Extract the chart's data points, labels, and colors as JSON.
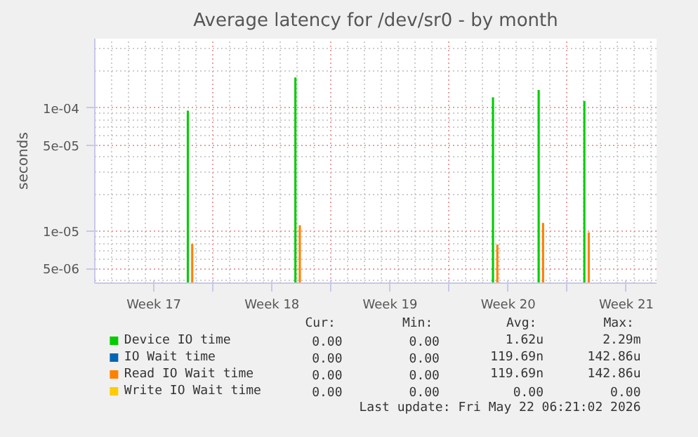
{
  "chart_data": {
    "type": "bar",
    "title": "Average latency for /dev/sr0 - by month",
    "ylabel": "seconds",
    "x": [
      "2026-04-25T17:00",
      "2026-05-02T02:00",
      "2026-05-13T19:00",
      "2026-05-16T12:00",
      "2026-05-19T05:00"
    ],
    "series": [
      {
        "name": "Device IO time",
        "color": "#00cc00",
        "values": [
          9.5e-05,
          0.000177,
          0.000122,
          0.00014,
          0.000114
        ]
      },
      {
        "name": "IO Wait time",
        "color": "#0066b3",
        "values": [
          null,
          null,
          null,
          null,
          null
        ]
      },
      {
        "name": "Read IO Wait time",
        "color": "#ff8000",
        "values": [
          7.9e-06,
          1.12e-05,
          7.8e-06,
          1.17e-05,
          9.8e-06
        ]
      },
      {
        "name": "Write IO Wait time",
        "color": "#ffcc00",
        "values": [
          null,
          null,
          null,
          null,
          null
        ]
      }
    ],
    "log": "y",
    "ylim": [
      3.8e-06,
      0.000365
    ],
    "yticks": [
      {
        "value": 5e-06,
        "label": "5e-06"
      },
      {
        "value": 1e-05,
        "label": "1e-05"
      },
      {
        "value": 5e-05,
        "label": "5e-05"
      },
      {
        "value": 0.0001,
        "label": "1e-04"
      }
    ],
    "xlim": [
      "2026-04-20T00:00",
      "2026-05-23T07:00"
    ],
    "xticks": [
      {
        "value": "2026-04-23T12:00",
        "label": "Week 17"
      },
      {
        "value": "2026-04-27",
        "label": null
      },
      {
        "value": "2026-04-30T12:00",
        "label": "Week 18"
      },
      {
        "value": "2026-05-04",
        "label": null
      },
      {
        "value": "2026-05-07T12:00",
        "label": "Week 19"
      },
      {
        "value": "2026-05-11",
        "label": null
      },
      {
        "value": "2026-05-14T12:00",
        "label": "Week 20"
      },
      {
        "value": "2026-05-18",
        "label": null
      },
      {
        "value": "2026-05-21T12:00",
        "label": "Week 21"
      }
    ],
    "grid": true,
    "legend": "bottom",
    "annotations": [
      "Cur:",
      "Min:",
      "Avg:",
      "Max:",
      "0.00",
      "0.00",
      "1.62u",
      "2.29m",
      "0.00",
      "0.00",
      "119.69n",
      "142.86u",
      "0.00",
      "0.00",
      "119.69n",
      "142.86u",
      "0.00",
      "0.00",
      "0.00",
      "0.00",
      "Last update: Fri May 22 06:21:02 2026"
    ]
  }
}
